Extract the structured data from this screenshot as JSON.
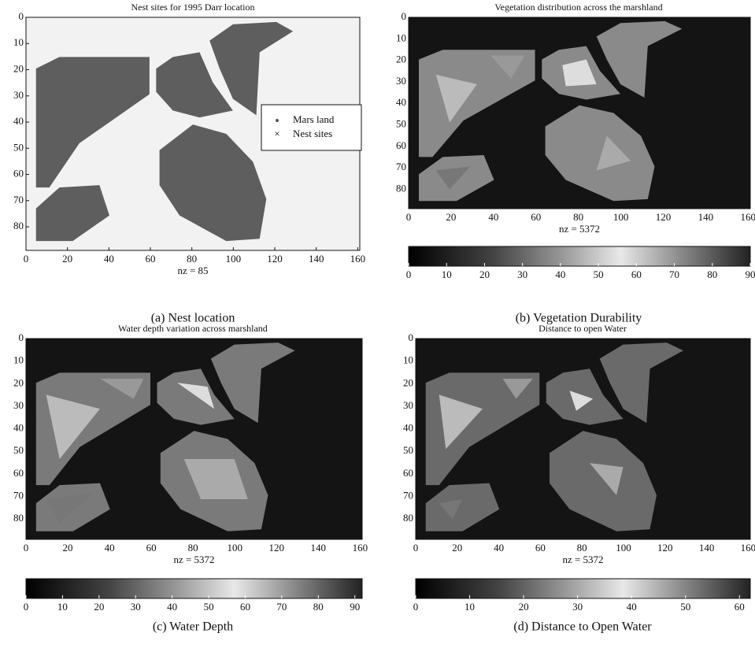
{
  "chart_data": [
    {
      "type": "map",
      "title": "Nest sites for 1995 Darr location",
      "xlabel": "nz = 85",
      "caption": "(a) Nest location",
      "xlim": [
        0,
        161
      ],
      "xticks": [
        0,
        20,
        40,
        60,
        80,
        100,
        120,
        140,
        160
      ],
      "ylim": [
        0,
        89
      ],
      "yticks": [
        0,
        10,
        20,
        30,
        40,
        50,
        60,
        70,
        80
      ],
      "background": "#f2f2f2",
      "color": "#5e5e5e",
      "legend": [
        "Mars land",
        "Nest sites"
      ],
      "legend_position": "right"
    },
    {
      "type": "map",
      "title": "Vegetation distribution across the marshland",
      "xlabel": "nz = 5372",
      "caption": "(b) Vegetation Durability",
      "xlim": [
        0,
        161
      ],
      "xticks": [
        0,
        20,
        40,
        60,
        80,
        100,
        120,
        140,
        160
      ],
      "ylim": [
        0,
        89
      ],
      "yticks": [
        0,
        10,
        20,
        30,
        40,
        50,
        60,
        70,
        80
      ],
      "background": "#141414",
      "color": "#8a8a8a",
      "clim": [
        0,
        90
      ],
      "cticks": [
        0,
        10,
        20,
        30,
        40,
        50,
        60,
        70,
        80,
        90
      ]
    },
    {
      "type": "map",
      "title": "Water depth variation across marshland",
      "xlabel": "nz = 5372",
      "caption": "(c) Water Depth",
      "xlim": [
        0,
        161
      ],
      "xticks": [
        0,
        20,
        40,
        60,
        80,
        100,
        120,
        140,
        160
      ],
      "ylim": [
        0,
        89
      ],
      "yticks": [
        0,
        10,
        20,
        30,
        40,
        50,
        60,
        70,
        80
      ],
      "background": "#141414",
      "color": "#7a7a7a",
      "clim": [
        0,
        92
      ],
      "cticks": [
        0,
        10,
        20,
        30,
        40,
        50,
        60,
        70,
        80,
        90
      ]
    },
    {
      "type": "map",
      "title": "Distance to open Water",
      "xlabel": "nz = 5372",
      "caption": "(d) Distance to Open Water",
      "xlim": [
        0,
        161
      ],
      "xticks": [
        0,
        20,
        40,
        60,
        80,
        100,
        120,
        140,
        160
      ],
      "ylim": [
        0,
        89
      ],
      "yticks": [
        0,
        10,
        20,
        30,
        40,
        50,
        60,
        70,
        80
      ],
      "background": "#141414",
      "color": "#6a6a6a",
      "clim": [
        0,
        62
      ],
      "cticks": [
        0,
        10,
        20,
        30,
        40,
        50,
        60
      ]
    }
  ]
}
